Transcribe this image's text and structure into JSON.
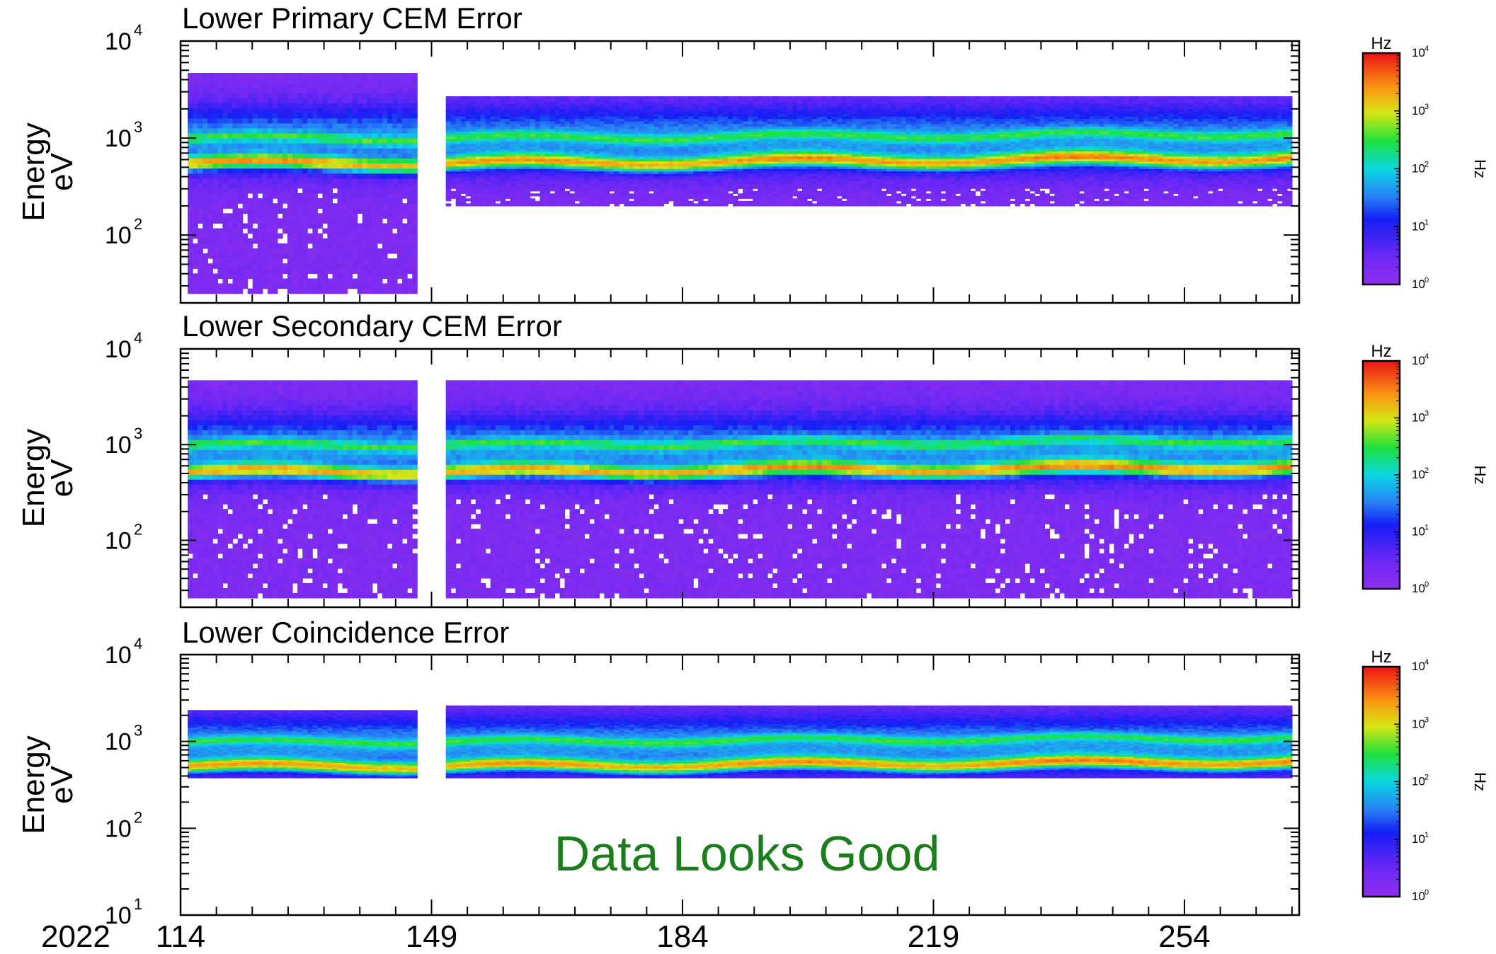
{
  "chart_data": {
    "type": "heatmap",
    "panels": [
      {
        "title": "Lower Primary CEM Error",
        "ylabel_top": "Energy",
        "ylabel_bottom": "eV",
        "y_scale": "log",
        "ylim": [
          20,
          10000
        ],
        "y_ticks": [
          {
            "base": "10",
            "exp": "4",
            "value": 10000
          },
          {
            "base": "10",
            "exp": "3",
            "value": 1000
          },
          {
            "base": "10",
            "exp": "2",
            "value": 100
          }
        ],
        "segments": [
          {
            "x_start": 115,
            "x_end": 147,
            "e_min": 25,
            "e_max": 4700
          },
          {
            "x_start": 151,
            "x_end": 269,
            "e_min": 200,
            "e_max": 2700
          }
        ],
        "peak_energy_ev": 550,
        "secondary_band_ev": 1000,
        "colorbar": {
          "label": "Hz",
          "side_label": "Hz",
          "scale": "log",
          "range": [
            1,
            10000
          ],
          "ticks": [
            {
              "base": "10",
              "exp": "4"
            },
            {
              "base": "10",
              "exp": "3"
            },
            {
              "base": "10",
              "exp": "2"
            },
            {
              "base": "10",
              "exp": "1"
            },
            {
              "base": "10",
              "exp": "0"
            }
          ]
        }
      },
      {
        "title": "Lower Secondary CEM Error",
        "ylabel_top": "Energy",
        "ylabel_bottom": "eV",
        "y_scale": "log",
        "ylim": [
          20,
          10000
        ],
        "y_ticks": [
          {
            "base": "10",
            "exp": "4",
            "value": 10000
          },
          {
            "base": "10",
            "exp": "3",
            "value": 1000
          },
          {
            "base": "10",
            "exp": "2",
            "value": 100
          }
        ],
        "segments": [
          {
            "x_start": 115,
            "x_end": 147,
            "e_min": 25,
            "e_max": 4700
          },
          {
            "x_start": 151,
            "x_end": 269,
            "e_min": 25,
            "e_max": 4700
          }
        ],
        "peak_energy_ev": 520,
        "secondary_band_ev": 1000,
        "colorbar": {
          "label": "Hz",
          "side_label": "Hz",
          "scale": "log",
          "range": [
            1,
            10000
          ],
          "ticks": [
            {
              "base": "10",
              "exp": "4"
            },
            {
              "base": "10",
              "exp": "3"
            },
            {
              "base": "10",
              "exp": "2"
            },
            {
              "base": "10",
              "exp": "1"
            },
            {
              "base": "10",
              "exp": "0"
            }
          ]
        }
      },
      {
        "title": "Lower Coincidence Error",
        "ylabel_top": "Energy",
        "ylabel_bottom": "eV",
        "y_scale": "log",
        "ylim": [
          10,
          10000
        ],
        "y_ticks": [
          {
            "base": "10",
            "exp": "4",
            "value": 10000
          },
          {
            "base": "10",
            "exp": "3",
            "value": 1000
          },
          {
            "base": "10",
            "exp": "2",
            "value": 100
          },
          {
            "base": "10",
            "exp": "1",
            "value": 10
          }
        ],
        "segments": [
          {
            "x_start": 115,
            "x_end": 147,
            "e_min": 380,
            "e_max": 2300
          },
          {
            "x_start": 151,
            "x_end": 269,
            "e_min": 380,
            "e_max": 2600
          }
        ],
        "peak_energy_ev": 520,
        "secondary_band_ev": 1000,
        "annotation": "Data Looks Good",
        "colorbar": {
          "label": "Hz",
          "side_label": "Hz",
          "scale": "log",
          "range": [
            1,
            10000
          ],
          "ticks": [
            {
              "base": "10",
              "exp": "4"
            },
            {
              "base": "10",
              "exp": "3"
            },
            {
              "base": "10",
              "exp": "2"
            },
            {
              "base": "10",
              "exp": "1"
            },
            {
              "base": "10",
              "exp": "0"
            }
          ]
        }
      }
    ],
    "x_axis": {
      "year_label": "2022",
      "xlim": [
        114,
        270
      ],
      "tick_labels": [
        "114",
        "149",
        "184",
        "219",
        "254"
      ],
      "tick_values": [
        114,
        149,
        184,
        219,
        254
      ]
    }
  }
}
